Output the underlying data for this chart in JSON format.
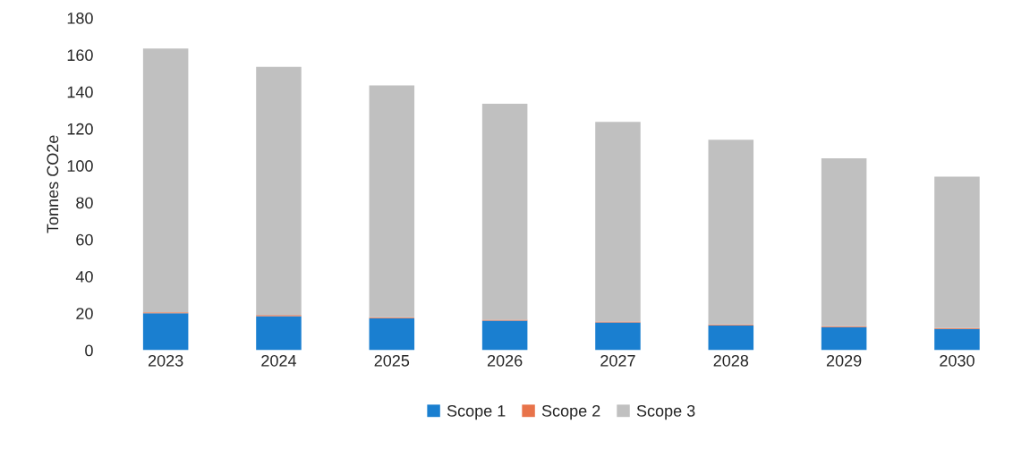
{
  "chart_data": {
    "type": "bar",
    "stacked": true,
    "ylabel": "Tonnes CO2e",
    "categories": [
      "2023",
      "2024",
      "2025",
      "2026",
      "2027",
      "2028",
      "2029",
      "2030"
    ],
    "series": [
      {
        "name": "Scope 1",
        "color": "#1a7fd0",
        "values": [
          20,
          18.5,
          17.3,
          16,
          15,
          13.5,
          12.5,
          11.5
        ]
      },
      {
        "name": "Scope 2",
        "color": "#e8734a",
        "values": [
          0.5,
          0.5,
          0.5,
          0.5,
          0.5,
          0.5,
          0.5,
          0.5
        ]
      },
      {
        "name": "Scope 3",
        "color": "#c0c0c0",
        "values": [
          143,
          134.5,
          125.7,
          117,
          108.2,
          100,
          91,
          82
        ]
      }
    ],
    "ylim": [
      0,
      180
    ],
    "yticks": [
      0,
      20,
      40,
      60,
      80,
      100,
      120,
      140,
      160,
      180
    ],
    "grid": false,
    "legend": "bottom"
  }
}
